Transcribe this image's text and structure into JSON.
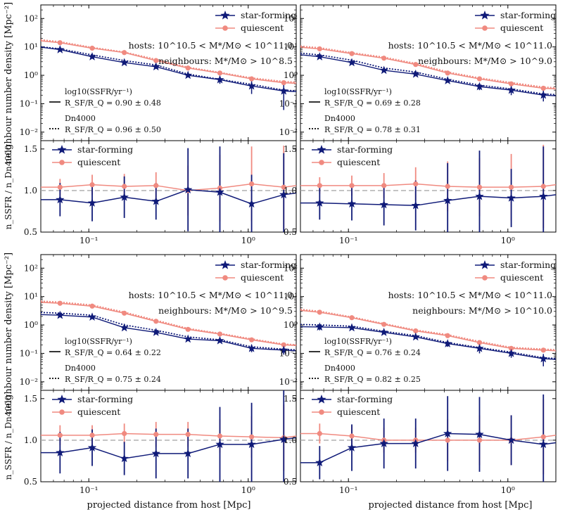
{
  "colors": {
    "sf": "#0f1a78",
    "q": "#f08a80",
    "ref": "#aaaaaa",
    "axis": "#000000"
  },
  "labels": {
    "ylabel_top": "neighbour number density [Mpc⁻²]",
    "ylabel_bottom": "n_SSFR / n_Dn4000",
    "xlabel": "projected distance from host [Mpc]",
    "legend_sf": "star-forming",
    "legend_q": "quiescent",
    "hosts": "hosts: 10^10.5 < M*/M⊙ < 10^11.0",
    "method_ssfr": "log10(SSFR/yr⁻¹)",
    "method_dn": "Dn4000"
  },
  "chart_data": [
    {
      "type": "line",
      "panel": "top-left",
      "neighbours": "neighbours: M*/M⊙ > 10^8.5",
      "ratio_ssfr": "R_SF/R_Q = 0.90 ± 0.48",
      "ratio_dn": "R_SF/R_Q = 0.96 ± 0.50",
      "xscale": "log",
      "xlim": [
        0.05,
        2.0
      ],
      "density": {
        "ylim": [
          0.005,
          300
        ],
        "yscale": "log",
        "yticks": [
          "10⁻²",
          "10⁻¹",
          "10⁰",
          "10¹",
          "10²"
        ],
        "x": [
          0.066,
          0.105,
          0.167,
          0.264,
          0.419,
          0.664,
          1.05,
          1.67
        ],
        "series": [
          {
            "name": "star-forming",
            "values": [
              8,
              4.5,
              2.8,
              2.0,
              1.0,
              0.7,
              0.42,
              0.28
            ],
            "err_lo": [
              0,
              0,
              0,
              0,
              0,
              0.2,
              0.2,
              0.22
            ],
            "err_hi": [
              0,
              0,
              0,
              0,
              0,
              0.2,
              0.3,
              0.3
            ]
          },
          {
            "name": "quiescent",
            "values": [
              14,
              9,
              6.3,
              3.3,
              1.8,
              1.2,
              0.75,
              0.55
            ]
          },
          {
            "name": "star-forming Dn4000",
            "values": [
              8.5,
              5.2,
              3.3,
              2.3,
              1.1,
              0.72,
              0.48,
              0.3
            ]
          },
          {
            "name": "quiescent Dn4000",
            "values": [
              15,
              9.5,
              6.5,
              3.6,
              1.9,
              1.25,
              0.8,
              0.6
            ]
          }
        ]
      },
      "ratio": {
        "ylim": [
          0.5,
          1.6
        ],
        "ref": 1.0,
        "x": [
          0.066,
          0.105,
          0.167,
          0.264,
          0.419,
          0.664,
          1.05,
          1.67
        ],
        "series": [
          {
            "name": "star-forming",
            "values": [
              0.89,
              0.85,
              0.92,
              0.87,
              1.01,
              0.98,
              0.84,
              0.95
            ],
            "err": [
              0.2,
              0.22,
              0.25,
              0.22,
              0.5,
              0.55,
              0.35,
              0.5
            ]
          },
          {
            "name": "quiescent",
            "values": [
              1.04,
              1.07,
              1.05,
              1.06,
              1.0,
              1.03,
              1.08,
              1.04
            ],
            "err": [
              0.1,
              0.12,
              0.15,
              0.16,
              0.3,
              0.4,
              0.45,
              0.5
            ]
          }
        ]
      }
    },
    {
      "type": "line",
      "panel": "top-right",
      "neighbours": "neighbours: M*/M⊙ > 10^9.0",
      "ratio_ssfr": "R_SF/R_Q = 0.69 ± 0.28",
      "ratio_dn": "R_SF/R_Q = 0.78 ± 0.31",
      "xscale": "log",
      "xlim": [
        0.05,
        2.0
      ],
      "density": {
        "ylim": [
          0.005,
          300
        ],
        "yscale": "log",
        "yticks": [
          "10⁻²",
          "10⁻¹",
          "10⁰",
          "10¹",
          "10²"
        ],
        "x": [
          0.066,
          0.105,
          0.167,
          0.264,
          0.419,
          0.664,
          1.05,
          1.67
        ],
        "series": [
          {
            "name": "star-forming",
            "values": [
              4.5,
              2.8,
              1.5,
              1.1,
              0.65,
              0.4,
              0.3,
              0.2
            ],
            "err_lo": [
              0,
              0,
              0,
              0,
              0,
              0.1,
              0.1,
              0.08
            ],
            "err_hi": [
              0,
              0,
              0,
              0,
              0,
              0.1,
              0.1,
              0.1
            ]
          },
          {
            "name": "quiescent",
            "values": [
              8.5,
              5.8,
              4.0,
              2.4,
              1.2,
              0.75,
              0.5,
              0.35
            ]
          },
          {
            "name": "star-forming Dn4000",
            "values": [
              5.2,
              3.4,
              1.8,
              1.3,
              0.72,
              0.45,
              0.33,
              0.22
            ]
          },
          {
            "name": "quiescent Dn4000",
            "values": [
              9.2,
              6.2,
              4.3,
              2.6,
              1.3,
              0.8,
              0.55,
              0.38
            ]
          }
        ]
      },
      "ratio": {
        "ylim": [
          0.5,
          1.6
        ],
        "ref": 1.0,
        "x": [
          0.066,
          0.105,
          0.167,
          0.264,
          0.419,
          0.664,
          1.05,
          1.67
        ],
        "series": [
          {
            "name": "star-forming",
            "values": [
              0.85,
              0.84,
              0.83,
              0.82,
              0.88,
              0.93,
              0.91,
              0.93
            ],
            "err": [
              0.2,
              0.2,
              0.25,
              0.3,
              0.45,
              0.55,
              0.35,
              0.6
            ]
          },
          {
            "name": "quiescent",
            "values": [
              1.06,
              1.06,
              1.06,
              1.08,
              1.05,
              1.04,
              1.04,
              1.05
            ],
            "err": [
              0.1,
              0.12,
              0.15,
              0.2,
              0.3,
              0.35,
              0.4,
              0.5
            ]
          }
        ]
      }
    },
    {
      "type": "line",
      "panel": "bottom-left",
      "neighbours": "neighbours: M*/M⊙ > 10^9.5",
      "ratio_ssfr": "R_SF/R_Q = 0.64 ± 0.22",
      "ratio_dn": "R_SF/R_Q = 0.75 ± 0.24",
      "xscale": "log",
      "xlim": [
        0.05,
        2.0
      ],
      "density": {
        "ylim": [
          0.005,
          300
        ],
        "yscale": "log",
        "yticks": [
          "10⁻²",
          "10⁻¹",
          "10⁰",
          "10¹",
          "10²"
        ],
        "x": [
          0.066,
          0.105,
          0.167,
          0.264,
          0.419,
          0.664,
          1.05,
          1.67
        ],
        "series": [
          {
            "name": "star-forming",
            "values": [
              2.2,
              1.9,
              0.8,
              0.55,
              0.32,
              0.28,
              0.15,
              0.13
            ],
            "err_lo": [
              0,
              0,
              0,
              0,
              0,
              0,
              0.04,
              0.04
            ],
            "err_hi": [
              0,
              0,
              0,
              0,
              0,
              0,
              0.05,
              0.05
            ]
          },
          {
            "name": "quiescent",
            "values": [
              5.8,
              4.6,
              2.6,
              1.35,
              0.7,
              0.48,
              0.3,
              0.2
            ]
          },
          {
            "name": "star-forming Dn4000",
            "values": [
              2.6,
              2.2,
              1.0,
              0.65,
              0.38,
              0.3,
              0.17,
              0.14
            ]
          },
          {
            "name": "quiescent Dn4000",
            "values": [
              6.3,
              5.0,
              2.8,
              1.45,
              0.75,
              0.5,
              0.32,
              0.21
            ]
          }
        ]
      },
      "ratio": {
        "ylim": [
          0.5,
          1.6
        ],
        "ref": 1.0,
        "x": [
          0.066,
          0.105,
          0.167,
          0.264,
          0.419,
          0.664,
          1.05,
          1.67
        ],
        "series": [
          {
            "name": "star-forming",
            "values": [
              0.85,
              0.91,
              0.78,
              0.84,
              0.84,
              0.95,
              0.95,
              1.01
            ],
            "err": [
              0.25,
              0.22,
              0.2,
              0.3,
              0.3,
              0.45,
              0.5,
              0.6
            ]
          },
          {
            "name": "quiescent",
            "values": [
              1.06,
              1.06,
              1.08,
              1.07,
              1.07,
              1.05,
              1.04,
              1.03
            ],
            "err": [
              0.12,
              0.12,
              0.12,
              0.15,
              0.15,
              0.2,
              0.25,
              0.4
            ]
          }
        ]
      }
    },
    {
      "type": "line",
      "panel": "bottom-right",
      "neighbours": "neighbours: M*/M⊙ > 10^10.0",
      "ratio_ssfr": "R_SF/R_Q = 0.76 ± 0.24",
      "ratio_dn": "R_SF/R_Q = 0.82 ± 0.25",
      "xscale": "log",
      "xlim": [
        0.05,
        2.0
      ],
      "density": {
        "ylim": [
          0.005,
          300
        ],
        "yscale": "log",
        "yticks": [
          "10⁻²",
          "10⁻¹",
          "10⁰",
          "10¹",
          "10²"
        ],
        "x": [
          0.066,
          0.105,
          0.167,
          0.264,
          0.419,
          0.664,
          1.05,
          1.67
        ],
        "series": [
          {
            "name": "star-forming",
            "values": [
              0.85,
              0.8,
              0.55,
              0.38,
              0.22,
              0.15,
              0.1,
              0.065
            ],
            "err_lo": [
              0.2,
              0.1,
              0,
              0,
              0.05,
              0.05,
              0.03,
              0.03
            ],
            "err_hi": [
              0.2,
              0.1,
              0,
              0,
              0.05,
              0.05,
              0.03,
              0.03
            ]
          },
          {
            "name": "quiescent",
            "values": [
              2.8,
              1.8,
              1.05,
              0.62,
              0.42,
              0.24,
              0.15,
              0.13
            ]
          },
          {
            "name": "star-forming Dn4000",
            "values": [
              1.0,
              0.9,
              0.6,
              0.42,
              0.24,
              0.16,
              0.11,
              0.07
            ]
          },
          {
            "name": "quiescent Dn4000",
            "values": [
              3.0,
              1.9,
              1.1,
              0.66,
              0.45,
              0.26,
              0.16,
              0.14
            ]
          }
        ]
      },
      "ratio": {
        "ylim": [
          0.5,
          1.6
        ],
        "ref": 1.0,
        "x": [
          0.066,
          0.105,
          0.167,
          0.264,
          0.419,
          0.664,
          1.05,
          1.67
        ],
        "series": [
          {
            "name": "star-forming",
            "values": [
              0.73,
              0.91,
              0.96,
              0.96,
              1.08,
              1.07,
              1.0,
              0.95
            ],
            "err": [
              0.2,
              0.28,
              0.3,
              0.3,
              0.45,
              0.45,
              0.3,
              0.6
            ]
          },
          {
            "name": "quiescent",
            "values": [
              1.08,
              1.05,
              1.0,
              1.0,
              1.0,
              1.0,
              1.0,
              1.04
            ],
            "err": [
              0.12,
              0.12,
              0.15,
              0.15,
              0.25,
              0.3,
              0.3,
              0.45
            ]
          }
        ]
      }
    }
  ]
}
